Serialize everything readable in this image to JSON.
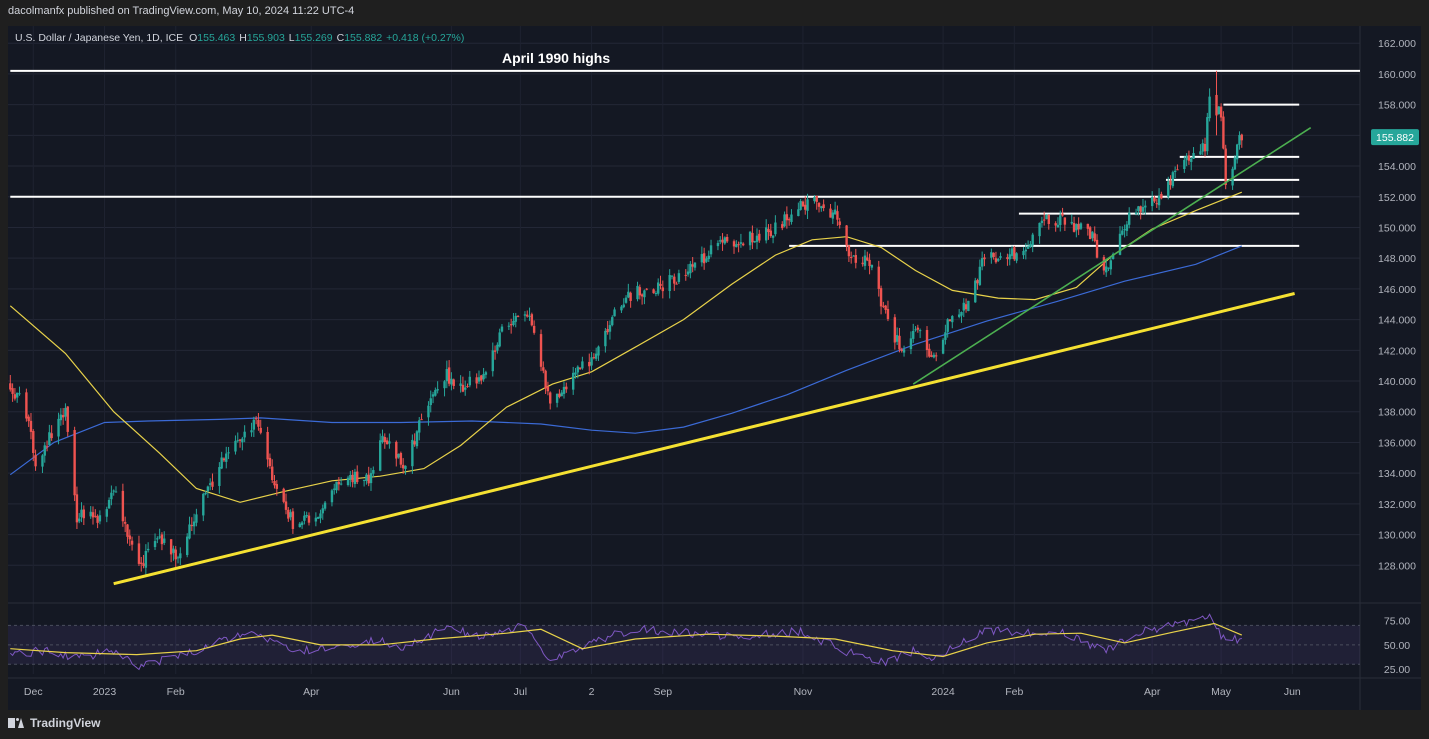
{
  "publisher": "dacolmanfx published on TradingView.com, May 10, 2024 11:22 UTC-4",
  "footer_brand": "TradingView",
  "colors": {
    "background": "#141823",
    "up_candle": "#26a69a",
    "down_candle": "#ef5350",
    "ma50": "#e8d24a",
    "ma200": "#3b6ad6",
    "trendline_yellow": "#f5e132",
    "trendline_green": "#4caf50",
    "rsi": "#7e57c2",
    "rsi_ma": "#e8d24a",
    "price_badge": "#26a69a"
  },
  "chart_data": {
    "type": "candlestick",
    "symbol_line": {
      "name": "U.S. Dollar / Japanese Yen, 1D, ICE",
      "o_label": "O",
      "o_value": "155.463",
      "h_label": "H",
      "h_value": "155.903",
      "l_label": "L",
      "l_value": "155.269",
      "c_label": "C",
      "c_value": "155.882",
      "change": "+0.418 (+0.27%)"
    },
    "annotation": "April 1990 highs",
    "last_price": "155.882",
    "ylim": [
      126.0,
      162.6
    ],
    "y_ticks": [
      "162.000",
      "160.000",
      "158.000",
      "156.000",
      "154.000",
      "152.000",
      "150.000",
      "148.000",
      "146.000",
      "144.000",
      "142.000",
      "140.000",
      "138.000",
      "136.000",
      "134.000",
      "132.000",
      "130.000",
      "128.000"
    ],
    "x_ticks": [
      {
        "label": "Dec",
        "date": "2022-12-01"
      },
      {
        "label": "2023",
        "date": "2023-01-01"
      },
      {
        "label": "Feb",
        "date": "2023-02-01"
      },
      {
        "label": "Apr",
        "date": "2023-04-01"
      },
      {
        "label": "Jun",
        "date": "2023-06-01"
      },
      {
        "label": "Jul",
        "date": "2023-07-01"
      },
      {
        "label": "2",
        "date": "2023-08-01"
      },
      {
        "label": "Sep",
        "date": "2023-09-01"
      },
      {
        "label": "Nov",
        "date": "2023-11-01"
      },
      {
        "label": "2024",
        "date": "2024-01-01"
      },
      {
        "label": "Feb",
        "date": "2024-02-01"
      },
      {
        "label": "Apr",
        "date": "2024-04-01"
      },
      {
        "label": "May",
        "date": "2024-05-01"
      },
      {
        "label": "Jun",
        "date": "2024-06-01"
      }
    ],
    "price_path": [
      [
        "2022-11-21",
        139.8
      ],
      [
        "2022-11-28",
        138.0
      ],
      [
        "2022-12-02",
        134.5
      ],
      [
        "2022-12-09",
        136.6
      ],
      [
        "2022-12-15",
        137.8
      ],
      [
        "2022-12-20",
        131.2
      ],
      [
        "2022-12-30",
        131.1
      ],
      [
        "2023-01-06",
        133.0
      ],
      [
        "2023-01-12",
        129.4
      ],
      [
        "2023-01-16",
        127.9
      ],
      [
        "2023-01-25",
        129.7
      ],
      [
        "2023-02-01",
        128.6
      ],
      [
        "2023-02-10",
        131.4
      ],
      [
        "2023-02-22",
        134.9
      ],
      [
        "2023-03-02",
        136.4
      ],
      [
        "2023-03-08",
        137.4
      ],
      [
        "2023-03-15",
        133.5
      ],
      [
        "2023-03-24",
        130.7
      ],
      [
        "2023-04-05",
        131.3
      ],
      [
        "2023-04-12",
        133.6
      ],
      [
        "2023-04-26",
        133.7
      ],
      [
        "2023-05-02",
        136.5
      ],
      [
        "2023-05-11",
        134.4
      ],
      [
        "2023-05-22",
        138.5
      ],
      [
        "2023-05-30",
        140.4
      ],
      [
        "2023-06-05",
        139.6
      ],
      [
        "2023-06-15",
        140.2
      ],
      [
        "2023-06-22",
        143.0
      ],
      [
        "2023-06-30",
        144.3
      ],
      [
        "2023-07-05",
        144.6
      ],
      [
        "2023-07-14",
        138.5
      ],
      [
        "2023-07-20",
        139.7
      ],
      [
        "2023-07-28",
        141.1
      ],
      [
        "2023-08-04",
        141.8
      ],
      [
        "2023-08-11",
        144.8
      ],
      [
        "2023-08-22",
        145.9
      ],
      [
        "2023-09-01",
        146.2
      ],
      [
        "2023-09-14",
        147.4
      ],
      [
        "2023-09-28",
        149.3
      ],
      [
        "2023-10-04",
        149.0
      ],
      [
        "2023-10-20",
        149.9
      ],
      [
        "2023-10-31",
        151.6
      ],
      [
        "2023-11-10",
        151.5
      ],
      [
        "2023-11-16",
        150.6
      ],
      [
        "2023-11-21",
        148.2
      ],
      [
        "2023-11-30",
        147.9
      ],
      [
        "2023-12-07",
        144.2
      ],
      [
        "2023-12-14",
        141.9
      ],
      [
        "2023-12-20",
        143.6
      ],
      [
        "2023-12-28",
        141.3
      ],
      [
        "2024-01-05",
        144.5
      ],
      [
        "2024-01-12",
        145.1
      ],
      [
        "2024-01-19",
        148.1
      ],
      [
        "2024-01-26",
        148.2
      ],
      [
        "2024-02-02",
        148.4
      ],
      [
        "2024-02-07",
        149.0
      ],
      [
        "2024-02-13",
        150.7
      ],
      [
        "2024-02-22",
        150.5
      ],
      [
        "2024-02-29",
        150.0
      ],
      [
        "2024-03-06",
        149.5
      ],
      [
        "2024-03-11",
        146.9
      ],
      [
        "2024-03-19",
        150.1
      ],
      [
        "2024-03-27",
        151.4
      ],
      [
        "2024-04-05",
        151.7
      ],
      [
        "2024-04-10",
        153.3
      ],
      [
        "2024-04-16",
        154.6
      ],
      [
        "2024-04-24",
        155.4
      ],
      [
        "2024-04-26",
        158.2
      ],
      [
        "2024-04-29",
        157.3
      ],
      [
        "2024-05-01",
        157.6
      ],
      [
        "2024-05-03",
        152.9
      ],
      [
        "2024-05-06",
        153.7
      ],
      [
        "2024-05-08",
        155.5
      ],
      [
        "2024-05-10",
        155.9
      ]
    ],
    "resistance_levels": [
      {
        "price": 160.2,
        "from": "2022-11-21",
        "to": "2024-07-13"
      },
      {
        "price": 158.0,
        "from": "2024-05-02",
        "to": "2024-06-04"
      },
      {
        "price": 154.6,
        "from": "2024-04-13",
        "to": "2024-06-04"
      },
      {
        "price": 153.1,
        "from": "2024-04-07",
        "to": "2024-06-04"
      },
      {
        "price": 152.0,
        "from": "2022-11-21",
        "to": "2024-06-04"
      },
      {
        "price": 150.9,
        "from": "2024-02-03",
        "to": "2024-06-04"
      },
      {
        "price": 148.8,
        "from": "2023-10-26",
        "to": "2024-06-04"
      }
    ],
    "trendlines": [
      {
        "name": "yellow",
        "from": [
          "2023-01-05",
          126.8
        ],
        "to": [
          "2024-06-02",
          145.7
        ]
      },
      {
        "name": "green",
        "from": [
          "2023-12-19",
          139.8
        ],
        "to": [
          "2024-06-09",
          156.5
        ]
      }
    ],
    "ma50": [
      [
        "2022-11-21",
        144.9
      ],
      [
        "2022-12-15",
        141.8
      ],
      [
        "2023-01-05",
        138.0
      ],
      [
        "2023-01-25",
        135.3
      ],
      [
        "2023-02-10",
        133.0
      ],
      [
        "2023-03-01",
        132.1
      ],
      [
        "2023-03-20",
        132.8
      ],
      [
        "2023-04-10",
        133.5
      ],
      [
        "2023-05-01",
        133.8
      ],
      [
        "2023-05-20",
        134.3
      ],
      [
        "2023-06-05",
        135.8
      ],
      [
        "2023-06-25",
        138.3
      ],
      [
        "2023-07-15",
        139.8
      ],
      [
        "2023-08-01",
        140.6
      ],
      [
        "2023-08-20",
        142.2
      ],
      [
        "2023-09-10",
        144.0
      ],
      [
        "2023-10-01",
        146.3
      ],
      [
        "2023-10-20",
        148.2
      ],
      [
        "2023-11-05",
        149.2
      ],
      [
        "2023-11-20",
        149.4
      ],
      [
        "2023-12-05",
        148.7
      ],
      [
        "2023-12-20",
        147.2
      ],
      [
        "2024-01-05",
        145.9
      ],
      [
        "2024-01-25",
        145.4
      ],
      [
        "2024-02-10",
        145.3
      ],
      [
        "2024-02-28",
        146.1
      ],
      [
        "2024-03-15",
        148.2
      ],
      [
        "2024-04-01",
        149.9
      ],
      [
        "2024-04-20",
        151.1
      ],
      [
        "2024-05-10",
        152.3
      ]
    ],
    "ma200": [
      [
        "2022-11-21",
        133.9
      ],
      [
        "2022-12-10",
        136.0
      ],
      [
        "2023-01-01",
        137.3
      ],
      [
        "2023-01-20",
        137.4
      ],
      [
        "2023-02-20",
        137.5
      ],
      [
        "2023-03-10",
        137.6
      ],
      [
        "2023-04-10",
        137.3
      ],
      [
        "2023-05-10",
        137.3
      ],
      [
        "2023-06-10",
        137.4
      ],
      [
        "2023-07-10",
        137.2
      ],
      [
        "2023-08-01",
        136.8
      ],
      [
        "2023-08-20",
        136.6
      ],
      [
        "2023-09-10",
        137.0
      ],
      [
        "2023-10-01",
        137.9
      ],
      [
        "2023-10-25",
        139.1
      ],
      [
        "2023-11-20",
        140.7
      ],
      [
        "2023-12-20",
        142.4
      ],
      [
        "2024-01-20",
        143.9
      ],
      [
        "2024-02-20",
        145.2
      ],
      [
        "2024-03-20",
        146.5
      ],
      [
        "2024-04-20",
        147.6
      ],
      [
        "2024-05-10",
        148.8
      ]
    ],
    "rsi": {
      "ylim": [
        20,
        90
      ],
      "y_ticks": [
        "75.00",
        "50.00",
        "25.00"
      ],
      "band": [
        30,
        70
      ],
      "rsi_line": [
        [
          "2022-11-21",
          40
        ],
        [
          "2022-12-05",
          44
        ],
        [
          "2022-12-20",
          36
        ],
        [
          "2023-01-05",
          44
        ],
        [
          "2023-01-16",
          28
        ],
        [
          "2023-02-01",
          37
        ],
        [
          "2023-02-22",
          55
        ],
        [
          "2023-03-08",
          62
        ],
        [
          "2023-03-24",
          42
        ],
        [
          "2023-04-12",
          48
        ],
        [
          "2023-05-02",
          55
        ],
        [
          "2023-05-11",
          46
        ],
        [
          "2023-05-30",
          68
        ],
        [
          "2023-06-15",
          58
        ],
        [
          "2023-07-03",
          70
        ],
        [
          "2023-07-14",
          35
        ],
        [
          "2023-08-04",
          56
        ],
        [
          "2023-08-22",
          66
        ],
        [
          "2023-09-14",
          62
        ],
        [
          "2023-10-04",
          58
        ],
        [
          "2023-10-31",
          64
        ],
        [
          "2023-11-21",
          42
        ],
        [
          "2023-12-07",
          33
        ],
        [
          "2023-12-20",
          44
        ],
        [
          "2023-12-28",
          35
        ],
        [
          "2024-01-19",
          66
        ],
        [
          "2024-02-07",
          63
        ],
        [
          "2024-02-22",
          64
        ],
        [
          "2024-03-11",
          44
        ],
        [
          "2024-03-27",
          64
        ],
        [
          "2024-04-16",
          72
        ],
        [
          "2024-04-26",
          82
        ],
        [
          "2024-05-03",
          52
        ],
        [
          "2024-05-10",
          58
        ]
      ],
      "rsi_ma": [
        [
          "2022-11-21",
          46
        ],
        [
          "2022-12-15",
          42
        ],
        [
          "2023-01-15",
          40
        ],
        [
          "2023-02-10",
          44
        ],
        [
          "2023-03-01",
          56
        ],
        [
          "2023-03-15",
          60
        ],
        [
          "2023-04-05",
          50
        ],
        [
          "2023-05-01",
          50
        ],
        [
          "2023-05-25",
          56
        ],
        [
          "2023-06-25",
          62
        ],
        [
          "2023-07-10",
          66
        ],
        [
          "2023-07-28",
          46
        ],
        [
          "2023-08-20",
          56
        ],
        [
          "2023-09-20",
          61
        ],
        [
          "2023-10-20",
          59
        ],
        [
          "2023-11-15",
          56
        ],
        [
          "2023-12-10",
          44
        ],
        [
          "2024-01-01",
          38
        ],
        [
          "2024-01-20",
          52
        ],
        [
          "2024-02-10",
          61
        ],
        [
          "2024-03-01",
          62
        ],
        [
          "2024-03-20",
          52
        ],
        [
          "2024-04-10",
          63
        ],
        [
          "2024-04-28",
          72
        ],
        [
          "2024-05-10",
          60
        ]
      ]
    }
  }
}
